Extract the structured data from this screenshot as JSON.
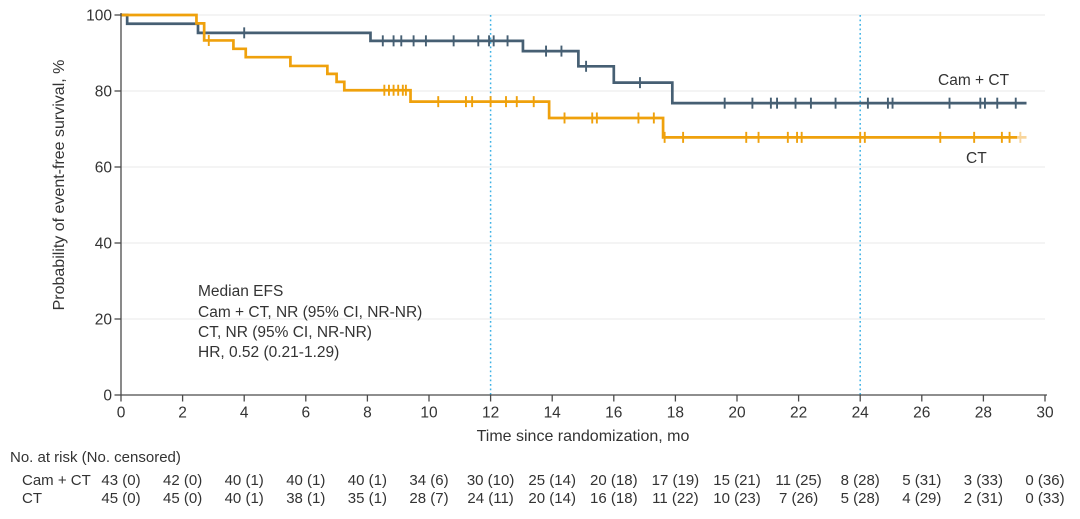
{
  "annotation": {
    "lines": [
      "Median EFS",
      "Cam + CT, NR (95% CI, NR-NR)",
      "CT, NR (95% CI, NR-NR)",
      "HR, 0.52 (0.21-1.29)"
    ]
  },
  "chart_data": {
    "type": "line",
    "subtype": "kaplan-meier-step",
    "title": "",
    "xlabel": "Time since randomization, mo",
    "ylabel": "Probability of event-free survival, %",
    "xlim": [
      0,
      30
    ],
    "ylim": [
      0,
      100
    ],
    "xticks": [
      0,
      2,
      4,
      6,
      8,
      10,
      12,
      14,
      16,
      18,
      20,
      22,
      24,
      26,
      28,
      30
    ],
    "yticks": [
      0,
      20,
      40,
      60,
      80,
      100
    ],
    "grid": "horizontal",
    "gridline_color": "#E9E9E9",
    "axis_color": "#4a4a4a",
    "reference_lines_x": [
      12,
      24
    ],
    "reference_line_color": "#3FB2E5",
    "reference_line_style": "dotted",
    "legend_position": "inline-labels",
    "series": [
      {
        "id": "camct",
        "name": "Cam + CT",
        "color": "#465F73",
        "steps": [
          [
            0,
            100
          ],
          [
            0.2,
            97.7
          ],
          [
            2.5,
            95.3
          ],
          [
            8.1,
            93.2
          ],
          [
            13.05,
            90.5
          ],
          [
            14.85,
            86.5
          ],
          [
            16.0,
            82.2
          ],
          [
            17.9,
            76.8
          ]
        ],
        "end_x": 29.4,
        "censors": [
          [
            4.0,
            95.3
          ],
          [
            8.5,
            93.2
          ],
          [
            8.85,
            93.2
          ],
          [
            9.1,
            93.2
          ],
          [
            9.5,
            93.2
          ],
          [
            9.9,
            93.2
          ],
          [
            10.8,
            93.2
          ],
          [
            11.6,
            93.2
          ],
          [
            11.95,
            93.2
          ],
          [
            12.1,
            93.2
          ],
          [
            12.55,
            93.2
          ],
          [
            13.8,
            90.5
          ],
          [
            14.3,
            90.5
          ],
          [
            15.1,
            86.5
          ],
          [
            16.85,
            82.2
          ],
          [
            19.6,
            76.8
          ],
          [
            20.5,
            76.8
          ],
          [
            21.1,
            76.8
          ],
          [
            21.3,
            76.8
          ],
          [
            21.9,
            76.8
          ],
          [
            22.4,
            76.8
          ],
          [
            23.2,
            76.8
          ],
          [
            24.25,
            76.8
          ],
          [
            24.9,
            76.8
          ],
          [
            25.05,
            76.8
          ],
          [
            26.9,
            76.8
          ],
          [
            27.9,
            76.8
          ],
          [
            28.05,
            76.8
          ],
          [
            28.45,
            76.8
          ],
          [
            29.05,
            76.8
          ]
        ]
      },
      {
        "id": "ct",
        "name": "CT",
        "color": "#EFA10C",
        "light_color": "#F8D59B",
        "steps": [
          [
            0,
            100
          ],
          [
            2.45,
            97.8
          ],
          [
            2.7,
            93.3
          ],
          [
            3.65,
            91.1
          ],
          [
            4.05,
            88.9
          ],
          [
            5.5,
            86.6
          ],
          [
            6.7,
            84.5
          ],
          [
            7.0,
            82.4
          ],
          [
            7.25,
            80.2
          ],
          [
            9.4,
            77.2
          ],
          [
            13.9,
            72.9
          ],
          [
            17.6,
            67.8
          ]
        ],
        "end_x": 29.1,
        "light_tail_x": 29.4,
        "censors": [
          [
            2.85,
            93.3
          ],
          [
            8.55,
            80.2
          ],
          [
            8.7,
            80.2
          ],
          [
            8.85,
            80.2
          ],
          [
            9.0,
            80.2
          ],
          [
            9.15,
            80.2
          ],
          [
            9.25,
            80.2
          ],
          [
            10.3,
            77.2
          ],
          [
            11.2,
            77.2
          ],
          [
            11.4,
            77.2
          ],
          [
            12.0,
            77.2
          ],
          [
            12.5,
            77.2
          ],
          [
            12.85,
            77.2
          ],
          [
            13.4,
            77.2
          ],
          [
            14.4,
            72.9
          ],
          [
            15.3,
            72.9
          ],
          [
            15.45,
            72.9
          ],
          [
            16.8,
            72.9
          ],
          [
            17.3,
            72.9
          ],
          [
            17.65,
            67.8
          ],
          [
            18.25,
            67.8
          ],
          [
            20.3,
            67.8
          ],
          [
            20.7,
            67.8
          ],
          [
            21.65,
            67.8
          ],
          [
            21.95,
            67.8
          ],
          [
            22.1,
            67.8
          ],
          [
            24.0,
            67.8
          ],
          [
            24.15,
            67.8
          ],
          [
            26.6,
            67.8
          ],
          [
            27.7,
            67.8
          ],
          [
            28.6,
            67.8
          ],
          [
            28.85,
            67.8
          ]
        ],
        "light_censors": [
          [
            29.2,
            67.8
          ]
        ]
      }
    ]
  },
  "risk_table": {
    "header": "No. at risk (No. censored)",
    "months": [
      0,
      2,
      4,
      6,
      8,
      10,
      12,
      14,
      16,
      18,
      20,
      22,
      24,
      26,
      28,
      30
    ],
    "rows": [
      {
        "label": "Cam + CT",
        "values": [
          "43 (0)",
          "42 (0)",
          "40 (1)",
          "40 (1)",
          "40 (1)",
          "34 (6)",
          "30 (10)",
          "25 (14)",
          "20 (18)",
          "17 (19)",
          "15 (21)",
          "11 (25)",
          "8 (28)",
          "5 (31)",
          "3 (33)",
          "0 (36)"
        ]
      },
      {
        "label": "CT",
        "values": [
          "45 (0)",
          "45 (0)",
          "40 (1)",
          "38 (1)",
          "35 (1)",
          "28 (7)",
          "24 (11)",
          "20 (14)",
          "16 (18)",
          "11 (22)",
          "10 (23)",
          "7 (26)",
          "5 (28)",
          "4 (29)",
          "2 (31)",
          "0 (33)"
        ]
      }
    ]
  }
}
